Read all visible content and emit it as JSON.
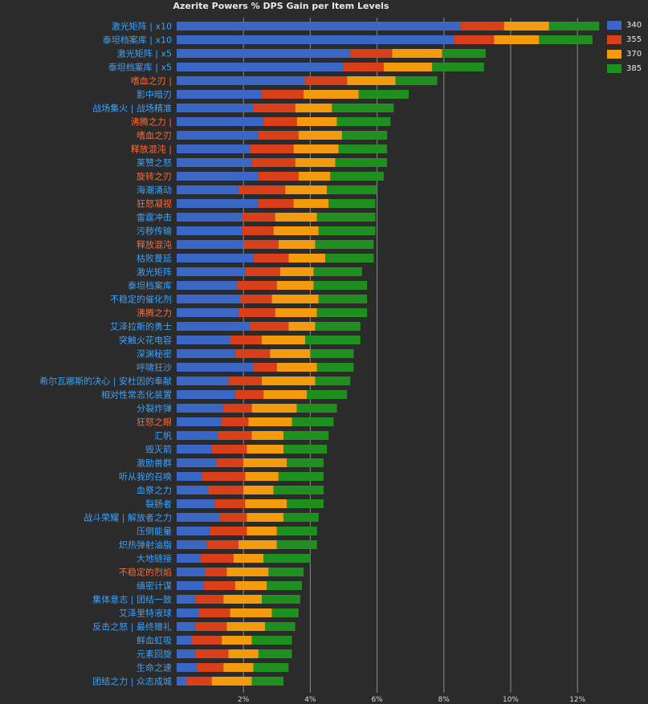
{
  "chart_data": {
    "type": "bar",
    "stacked": true,
    "orientation": "horizontal",
    "title": "Azerite Powers % DPS Gain per Item Levels",
    "xlim": [
      0,
      13
    ],
    "x_ticks": [
      "2%",
      "4%",
      "6%",
      "8%",
      "10%",
      "12%"
    ],
    "x_tick_values": [
      2,
      4,
      6,
      8,
      10,
      12
    ],
    "grid": true,
    "legend_position": "top-right",
    "series": [
      {
        "name": "340",
        "color": "#3a66c4"
      },
      {
        "name": "355",
        "color": "#d9401a"
      },
      {
        "name": "370",
        "color": "#f39a0f"
      },
      {
        "name": "385",
        "color": "#1f8f1f"
      }
    ],
    "rows": [
      {
        "label": "激光矩阵 | x10",
        "color": "#3ba3ff",
        "values": [
          8.5,
          1.3,
          1.35,
          1.5
        ]
      },
      {
        "label": "泰坦档案库 | x10",
        "color": "#3ba3ff",
        "values": [
          8.3,
          1.2,
          1.35,
          1.6
        ]
      },
      {
        "label": "激光矩阵 | x5",
        "color": "#3ba3ff",
        "values": [
          5.2,
          1.25,
          1.5,
          1.3
        ]
      },
      {
        "label": "泰坦档案库 | x5",
        "color": "#3ba3ff",
        "values": [
          5.0,
          1.2,
          1.45,
          1.55
        ]
      },
      {
        "label": "嗜血之刃 |",
        "color": "#ff6a3a",
        "values": [
          3.85,
          1.25,
          1.45,
          1.25
        ]
      },
      {
        "label": "影中暗刃",
        "color": "#3ba3ff",
        "values": [
          2.55,
          1.25,
          1.65,
          1.5
        ]
      },
      {
        "label": "战场集火 | 战场精准",
        "color": "#3ba3ff",
        "values": [
          2.3,
          1.25,
          1.1,
          1.85
        ]
      },
      {
        "label": "沸腾之力 |",
        "color": "#ff6a3a",
        "values": [
          2.6,
          1.0,
          1.2,
          1.6
        ]
      },
      {
        "label": "嗜血之刃",
        "color": "#ff6a3a",
        "values": [
          2.45,
          1.2,
          1.3,
          1.35
        ]
      },
      {
        "label": "释放混沌 |",
        "color": "#ff6a3a",
        "values": [
          2.2,
          1.3,
          1.35,
          1.45
        ]
      },
      {
        "label": "莱赞之怒",
        "color": "#3ba3ff",
        "values": [
          2.25,
          1.3,
          1.2,
          1.55
        ]
      },
      {
        "label": "旋转之刃",
        "color": "#ff6a3a",
        "values": [
          2.45,
          1.2,
          0.95,
          1.6
        ]
      },
      {
        "label": "海潮涌动",
        "color": "#3ba3ff",
        "values": [
          1.85,
          1.4,
          1.25,
          1.5
        ]
      },
      {
        "label": "狂怒凝视",
        "color": "#ff6a3a",
        "values": [
          2.45,
          1.05,
          1.05,
          1.4
        ]
      },
      {
        "label": "雷霆冲击",
        "color": "#3ba3ff",
        "values": [
          1.95,
          1.0,
          1.25,
          1.75
        ]
      },
      {
        "label": "污秽传输",
        "color": "#3ba3ff",
        "values": [
          1.95,
          0.95,
          1.35,
          1.7
        ]
      },
      {
        "label": "释放混沌",
        "color": "#ff6a3a",
        "values": [
          2.0,
          1.05,
          1.1,
          1.75
        ]
      },
      {
        "label": "枯败蔓延",
        "color": "#3ba3ff",
        "values": [
          2.3,
          1.05,
          1.1,
          1.45
        ]
      },
      {
        "label": "激光矩阵",
        "color": "#3ba3ff",
        "values": [
          2.05,
          1.05,
          1.0,
          1.45
        ]
      },
      {
        "label": "泰坦档案库",
        "color": "#3ba3ff",
        "values": [
          1.8,
          1.2,
          1.1,
          1.6
        ]
      },
      {
        "label": "不稳定的催化剂",
        "color": "#3ba3ff",
        "values": [
          1.9,
          0.95,
          1.4,
          1.45
        ]
      },
      {
        "label": "沸腾之力",
        "color": "#ff6a3a",
        "values": [
          1.85,
          1.1,
          1.25,
          1.5
        ]
      },
      {
        "label": "艾泽拉斯的勇士",
        "color": "#3ba3ff",
        "values": [
          2.2,
          1.15,
          0.8,
          1.35
        ]
      },
      {
        "label": "突触火花电容",
        "color": "#3ba3ff",
        "values": [
          1.6,
          0.95,
          1.3,
          1.65
        ]
      },
      {
        "label": "深渊秘密",
        "color": "#3ba3ff",
        "values": [
          1.75,
          1.05,
          1.2,
          1.3
        ]
      },
      {
        "label": "呼啸狂沙",
        "color": "#3ba3ff",
        "values": [
          2.3,
          0.7,
          1.2,
          1.1
        ]
      },
      {
        "label": "希尔瓦娜斯的决心 | 安杜因的奉献",
        "color": "#3ba3ff",
        "values": [
          1.55,
          1.0,
          1.6,
          1.05
        ]
      },
      {
        "label": "相对性常态化装置",
        "color": "#3ba3ff",
        "values": [
          1.75,
          0.85,
          1.3,
          1.2
        ]
      },
      {
        "label": "分裂炸弹",
        "color": "#3ba3ff",
        "values": [
          1.4,
          0.85,
          1.35,
          1.2
        ]
      },
      {
        "label": "狂怒之眼",
        "color": "#ff6a3a",
        "values": [
          1.35,
          0.8,
          1.3,
          1.25
        ]
      },
      {
        "label": "汇帆",
        "color": "#3ba3ff",
        "values": [
          1.25,
          1.0,
          0.95,
          1.35
        ]
      },
      {
        "label": "毁灭箭",
        "color": "#3ba3ff",
        "values": [
          1.05,
          1.05,
          1.1,
          1.3
        ]
      },
      {
        "label": "激励兽群",
        "color": "#3ba3ff",
        "values": [
          1.2,
          0.8,
          1.3,
          1.1
        ]
      },
      {
        "label": "听从我的召唤",
        "color": "#3ba3ff",
        "values": [
          0.75,
          1.3,
          1.0,
          1.35
        ]
      },
      {
        "label": "血祭之力",
        "color": "#3ba3ff",
        "values": [
          0.95,
          1.05,
          0.9,
          1.5
        ]
      },
      {
        "label": "裂肠者",
        "color": "#3ba3ff",
        "values": [
          1.15,
          0.9,
          1.25,
          1.1
        ]
      },
      {
        "label": "战斗荣耀 | 解放者之力",
        "color": "#3ba3ff",
        "values": [
          1.3,
          0.8,
          1.1,
          1.05
        ]
      },
      {
        "label": "压倒能量",
        "color": "#3ba3ff",
        "values": [
          1.0,
          1.1,
          0.9,
          1.2
        ]
      },
      {
        "label": "炽热弹射油脂",
        "color": "#3ba3ff",
        "values": [
          0.9,
          0.95,
          1.15,
          1.2
        ]
      },
      {
        "label": "大地链接",
        "color": "#3ba3ff",
        "values": [
          0.7,
          1.0,
          0.9,
          1.4
        ]
      },
      {
        "label": "不稳定的烈焰",
        "color": "#ff6a3a",
        "values": [
          0.85,
          0.65,
          1.25,
          1.05
        ]
      },
      {
        "label": "缜密计谋",
        "color": "#3ba3ff",
        "values": [
          0.8,
          0.95,
          0.95,
          1.05
        ]
      },
      {
        "label": "集体意志 | 团结一致",
        "color": "#3ba3ff",
        "values": [
          0.55,
          0.85,
          1.15,
          1.15
        ]
      },
      {
        "label": "艾泽里特液球",
        "color": "#3ba3ff",
        "values": [
          0.65,
          0.95,
          1.25,
          0.8
        ]
      },
      {
        "label": "反击之怒 | 最终赠礼",
        "color": "#3ba3ff",
        "values": [
          0.55,
          0.95,
          1.15,
          0.9
        ]
      },
      {
        "label": "鲜血虹吸",
        "color": "#3ba3ff",
        "values": [
          0.45,
          0.9,
          0.9,
          1.2
        ]
      },
      {
        "label": "元素回旋",
        "color": "#3ba3ff",
        "values": [
          0.55,
          1.0,
          0.9,
          1.0
        ]
      },
      {
        "label": "生命之速",
        "color": "#3ba3ff",
        "values": [
          0.6,
          0.8,
          0.9,
          1.05
        ]
      },
      {
        "label": "团结之力 | 众志成城",
        "color": "#3ba3ff",
        "values": [
          0.3,
          0.75,
          1.2,
          0.95
        ]
      }
    ]
  }
}
